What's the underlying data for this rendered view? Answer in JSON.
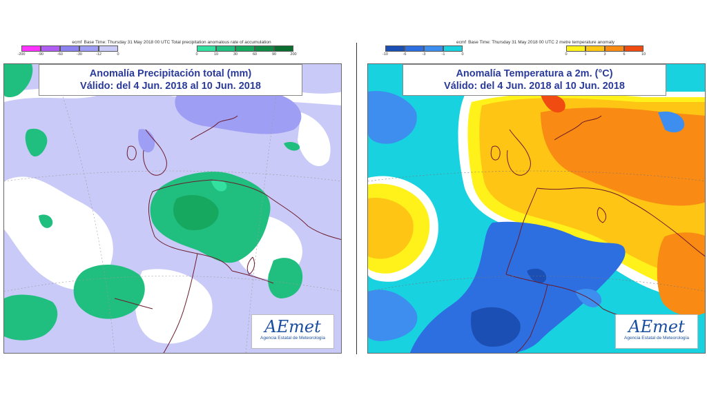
{
  "left": {
    "header_source": "ecmf",
    "header_text": "Base Time: Thursday 31 May 2018 00 UTC Total precipitation anomalous rate of accumulation",
    "legend_neg": {
      "ticks": [
        "-200",
        "-90",
        "-60",
        "-30",
        "-12",
        "0"
      ],
      "colors": [
        "#ff33ff",
        "#b05ef2",
        "#8c82f0",
        "#9f9ef5",
        "#cacaf8"
      ]
    },
    "legend_pos": {
      "ticks": [
        "0",
        "10",
        "30",
        "60",
        "90",
        "200"
      ],
      "colors": [
        "#33e0a0",
        "#21bf7f",
        "#17a860",
        "#118a45",
        "#0b6d2e"
      ]
    },
    "title_line1": "Anomalía Precipitación total (mm)",
    "title_line2": "Válido: del 4 Jun. 2018 al 10 Jun. 2018",
    "logo_brand": "AEmet",
    "logo_sub": "Agencia Estatal de Meteorología"
  },
  "right": {
    "header_source": "ecmf",
    "header_text": "Base Time: Thursday 31 May 2018 00 UTC 2 metre temperature anomaly",
    "legend_neg": {
      "ticks": [
        "-10",
        "-6",
        "-3",
        "-1",
        "0"
      ],
      "colors": [
        "#1b4fb3",
        "#2d6fe0",
        "#3e8ef0",
        "#18d2e0"
      ]
    },
    "legend_pos": {
      "ticks": [
        "0",
        "1",
        "3",
        "6",
        "10"
      ],
      "colors": [
        "#fff21a",
        "#ffc515",
        "#f98a13",
        "#f04c12"
      ]
    },
    "title_line1": "Anomalía Temperatura a 2m. (°C)",
    "title_line2": "Válido: del 4 Jun. 2018 al 10 Jun. 2018",
    "logo_brand": "AEmet",
    "logo_sub": "Agencia Estatal de Meteorología"
  }
}
